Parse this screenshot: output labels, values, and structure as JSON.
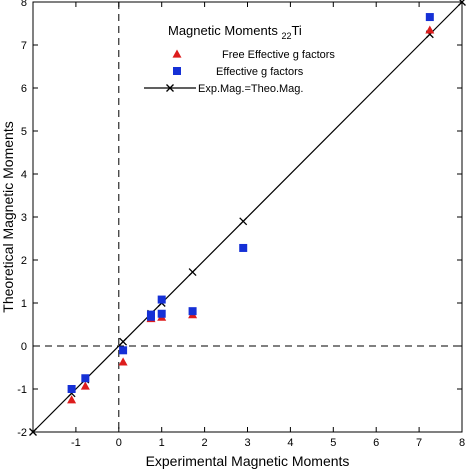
{
  "chart_data": {
    "type": "scatter",
    "title": "",
    "xlabel": "Experimental Magnetic Moments",
    "ylabel": "Theoretical Magnetic Moments",
    "xlim": [
      -2,
      8
    ],
    "ylim": [
      -2,
      8
    ],
    "x_ticks": [
      -1,
      0,
      1,
      2,
      3,
      4,
      5,
      6,
      7,
      8
    ],
    "y_ticks": [
      -2,
      -1,
      0,
      1,
      2,
      3,
      4,
      5,
      6,
      7,
      8
    ],
    "x_tick_labels": [
      "-1",
      "0",
      "1",
      "2",
      "3",
      "4",
      "5",
      "6",
      "7",
      "8"
    ],
    "y_tick_labels": [
      "-2",
      "-1",
      "0",
      "1",
      "2",
      "3",
      "4",
      "5",
      "6",
      "7",
      "8"
    ],
    "x_label_edge": "-2",
    "legend": {
      "title_main": "Magnetic Moments ",
      "title_sub": "22",
      "title_suffix": "Ti",
      "placement": "top-center"
    },
    "reference_lines": [
      {
        "orientation": "vertical",
        "value": 0,
        "style": "dashed"
      },
      {
        "orientation": "horizontal",
        "value": 0,
        "style": "dashed"
      }
    ],
    "series": [
      {
        "name": "Free Effective g factors",
        "marker": "triangle",
        "color": "#dd1c1c",
        "x": [
          -1.1,
          -0.78,
          0.1,
          0.75,
          1.0,
          1.72,
          7.25
        ],
        "y": [
          -1.25,
          -0.93,
          -0.37,
          0.64,
          0.67,
          0.73,
          7.35
        ]
      },
      {
        "name": "Effective g factors",
        "marker": "square",
        "color": "#1530d6",
        "x": [
          -1.1,
          -0.78,
          0.1,
          0.75,
          0.75,
          1.0,
          1.0,
          1.72,
          2.9,
          7.25
        ],
        "y": [
          -1.0,
          -0.75,
          -0.1,
          0.73,
          0.68,
          0.75,
          1.08,
          0.81,
          2.28,
          7.65
        ]
      },
      {
        "name": "Exp.Mag.=Theo.Mag.",
        "marker": "x",
        "line": true,
        "color": "#000000",
        "x": [
          -2,
          -1.1,
          -0.78,
          0.1,
          0.75,
          1.0,
          1.72,
          2.9,
          7.25,
          8
        ],
        "y": [
          -2,
          -1.1,
          -0.78,
          0.1,
          0.75,
          1.0,
          1.72,
          2.9,
          7.25,
          8
        ]
      }
    ]
  }
}
